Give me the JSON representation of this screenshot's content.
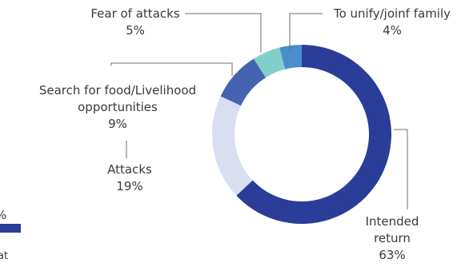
{
  "chart_data": {
    "type": "pie",
    "variant": "donut",
    "title": "",
    "slices": [
      {
        "label": "Intended return",
        "value": 63,
        "display": "63%",
        "color": "#2a3d98"
      },
      {
        "label": "Attacks",
        "value": 19,
        "display": "19%",
        "color": "#d9def1"
      },
      {
        "label": "Search for food/Livelihood opportunities",
        "value": 9,
        "display": "9%",
        "color": "#4563b0"
      },
      {
        "label": "Fear of attacks",
        "value": 5,
        "display": "5%",
        "color": "#82cfc9"
      },
      {
        "label": "To unify/joinf family",
        "value": 4,
        "display": "4%",
        "color": "#4a8ed0"
      }
    ],
    "legend": "labels-on-chart"
  },
  "fragments": {
    "pct_top": "%",
    "text_bottom": "at",
    "bar_color": "#2a3d98"
  }
}
